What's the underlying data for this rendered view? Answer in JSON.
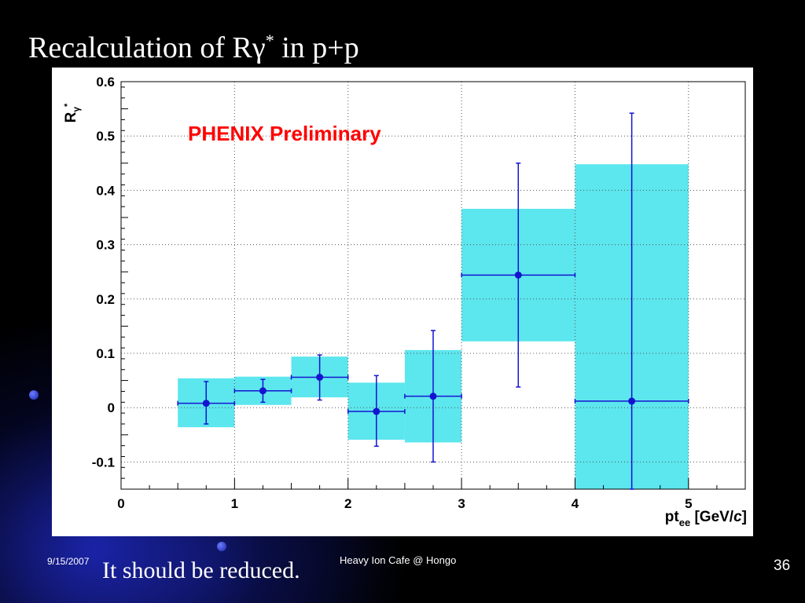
{
  "slide": {
    "title_main": "Recalculation of Rγ",
    "title_sup": "*",
    "title_tail": " in p+p",
    "note": "It should be reduced.",
    "footer_date": "9/15/2007",
    "footer_center": "Heavy Ion Cafe @ Hongo",
    "page_number": "36"
  },
  "colors": {
    "background": "#000000",
    "marker": "#1414d0",
    "sys_band": "#5ce6ee",
    "annotation": "#ff0000",
    "glow": "#1e28be"
  },
  "chart_data": {
    "type": "scatter",
    "title": "",
    "annotation": "PHENIX Preliminary",
    "ylabel": "Rγ*",
    "xlabel": "pt_ee [GeV/c]",
    "xlim": [
      0,
      5.5
    ],
    "ylim": [
      -0.15,
      0.6
    ],
    "xticks": [
      0,
      1,
      2,
      3,
      4,
      5
    ],
    "yticks": [
      -0.1,
      0,
      0.1,
      0.2,
      0.3,
      0.4,
      0.5,
      0.6
    ],
    "grid": true,
    "points": [
      {
        "x": 0.75,
        "x_low": 0.5,
        "x_high": 1.0,
        "y": 0.008,
        "stat_low": -0.03,
        "stat_high": 0.048,
        "sys_low": -0.036,
        "sys_high": 0.054
      },
      {
        "x": 1.25,
        "x_low": 1.0,
        "x_high": 1.5,
        "y": 0.031,
        "stat_low": 0.01,
        "stat_high": 0.052,
        "sys_low": 0.005,
        "sys_high": 0.057
      },
      {
        "x": 1.75,
        "x_low": 1.5,
        "x_high": 2.0,
        "y": 0.056,
        "stat_low": 0.014,
        "stat_high": 0.097,
        "sys_low": 0.019,
        "sys_high": 0.094
      },
      {
        "x": 2.25,
        "x_low": 2.0,
        "x_high": 2.5,
        "y": -0.007,
        "stat_low": -0.071,
        "stat_high": 0.059,
        "sys_low": -0.059,
        "sys_high": 0.046
      },
      {
        "x": 2.75,
        "x_low": 2.5,
        "x_high": 3.0,
        "y": 0.021,
        "stat_low": -0.1,
        "stat_high": 0.142,
        "sys_low": -0.064,
        "sys_high": 0.106
      },
      {
        "x": 3.5,
        "x_low": 3.0,
        "x_high": 4.0,
        "y": 0.244,
        "stat_low": 0.038,
        "stat_high": 0.45,
        "sys_low": 0.122,
        "sys_high": 0.366
      },
      {
        "x": 4.5,
        "x_low": 4.0,
        "x_high": 5.0,
        "y": 0.012,
        "stat_low": -0.15,
        "stat_high": 0.542,
        "sys_low": -0.15,
        "sys_high": 0.448
      }
    ]
  }
}
